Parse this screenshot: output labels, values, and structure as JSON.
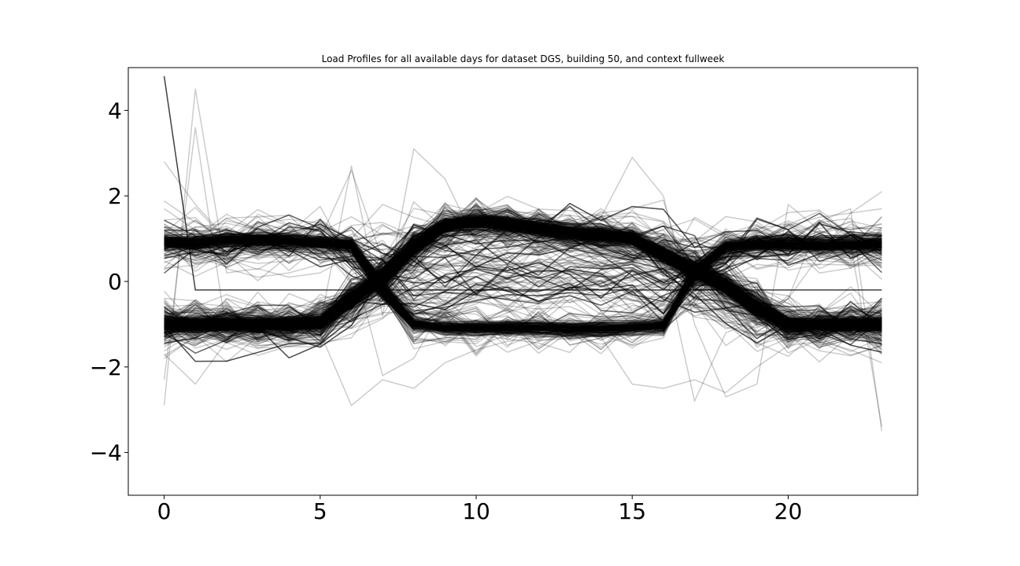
{
  "chart_data": {
    "type": "line",
    "title": "Load Profiles for all available days for dataset DGS, building 50, and context fullweek",
    "xlabel": "",
    "ylabel": "",
    "xlim": [
      -1.15,
      24.15
    ],
    "ylim": [
      -5,
      5
    ],
    "x_ticks": [
      0,
      5,
      10,
      15,
      20
    ],
    "x_tick_labels": [
      "0",
      "5",
      "10",
      "15",
      "20"
    ],
    "y_ticks": [
      4,
      2,
      0,
      -2,
      -4
    ],
    "y_tick_labels": [
      "4",
      "2",
      "0",
      "−2",
      "−4"
    ],
    "grid": false,
    "legend": "none",
    "line_color": "#000000",
    "x": [
      0,
      1,
      2,
      3,
      4,
      5,
      6,
      7,
      8,
      9,
      10,
      11,
      12,
      13,
      14,
      15,
      16,
      17,
      18,
      19,
      20,
      21,
      22,
      23
    ],
    "num_profiles_estimated": 700,
    "series": [
      {
        "values": [
          -1.0,
          -1.0,
          -1.0,
          -1.0,
          -1.0,
          -0.95,
          -0.4,
          0.1,
          0.8,
          1.3,
          1.4,
          1.35,
          1.25,
          1.15,
          1.1,
          1.0,
          0.6,
          0.3,
          -0.1,
          -0.6,
          -1.0,
          -1.0,
          -1.0,
          -1.0
        ]
      },
      {
        "values": [
          -1.05,
          -1.05,
          -1.05,
          -1.05,
          -1.05,
          -1.0,
          -0.5,
          0.0,
          0.7,
          1.25,
          1.35,
          1.3,
          1.2,
          1.1,
          1.05,
          0.95,
          0.55,
          0.2,
          -0.2,
          -0.7,
          -1.05,
          -1.05,
          -1.05,
          -1.05
        ]
      },
      {
        "values": [
          -0.95,
          -0.95,
          -0.95,
          -0.95,
          -0.95,
          -0.9,
          -0.3,
          0.2,
          0.9,
          1.35,
          1.45,
          1.4,
          1.3,
          1.2,
          1.15,
          1.05,
          0.7,
          0.35,
          0.0,
          -0.5,
          -0.95,
          -0.95,
          -0.95,
          -0.95
        ]
      },
      {
        "values": [
          0.9,
          0.9,
          0.95,
          0.95,
          0.95,
          0.9,
          0.85,
          -0.2,
          -1.0,
          -1.1,
          -1.1,
          -1.1,
          -1.1,
          -1.1,
          -1.1,
          -1.1,
          -1.05,
          0.2,
          0.8,
          0.85,
          0.85,
          0.85,
          0.85,
          0.85
        ]
      },
      {
        "values": [
          0.95,
          0.95,
          1.0,
          1.0,
          1.0,
          0.95,
          0.9,
          -0.1,
          -0.95,
          -1.15,
          -1.15,
          -1.15,
          -1.2,
          -1.2,
          -1.2,
          -1.15,
          -1.1,
          0.3,
          0.85,
          0.9,
          0.9,
          0.9,
          0.9,
          0.9
        ]
      },
      {
        "values": [
          0.85,
          0.85,
          0.9,
          0.9,
          0.9,
          0.85,
          0.8,
          -0.3,
          -1.05,
          -1.05,
          -1.05,
          -1.05,
          -1.05,
          -1.05,
          -1.05,
          -1.05,
          -1.0,
          0.1,
          0.75,
          0.8,
          0.8,
          0.8,
          0.8,
          0.8
        ]
      },
      {
        "values": [
          4.8,
          -0.2,
          -0.2,
          -0.2,
          -0.2,
          -0.2,
          -0.2,
          -0.2,
          -0.2,
          -0.2,
          -0.2,
          -0.2,
          -0.2,
          -0.2,
          -0.2,
          -0.2,
          -0.2,
          -0.2,
          -0.2,
          -0.2,
          -0.2,
          -0.2,
          -0.2,
          -0.2
        ],
        "emphasis": true
      },
      {
        "values": [
          2.8,
          1.8,
          1.0,
          1.0,
          1.0,
          1.0,
          2.6,
          0.5,
          0.2,
          0.4,
          0.8,
          1.0,
          1.2,
          1.4,
          1.6,
          1.7,
          1.9,
          -0.5,
          -1.5,
          -1.0,
          -0.4,
          0.6,
          1.6,
          2.1
        ]
      },
      {
        "values": [
          -2.9,
          4.5,
          0.2,
          0.3,
          0.1,
          0.2,
          0.6,
          -2.2,
          -1.8,
          -0.5,
          -0.3,
          0.1,
          0.4,
          0.8,
          1.0,
          0.8,
          0.5,
          -2.8,
          -1.2,
          -0.9,
          -0.4,
          1.4,
          1.7,
          -3.5
        ]
      },
      {
        "values": [
          -2.3,
          3.6,
          -1.2,
          -1.1,
          -1.1,
          -1.0,
          2.7,
          -0.8,
          3.1,
          2.4,
          0.9,
          0.5,
          0.7,
          1.2,
          1.5,
          2.9,
          2.0,
          -1.0,
          -2.7,
          -2.4,
          1.8,
          1.2,
          0.9,
          -3.4
        ]
      },
      {
        "values": [
          1.7,
          1.2,
          0.3,
          0.1,
          0.2,
          0.4,
          1.0,
          1.8,
          1.5,
          1.3,
          1.2,
          1.0,
          0.9,
          0.7,
          0.5,
          0.4,
          0.2,
          1.5,
          1.1,
          0.9,
          1.3,
          1.5,
          1.6,
          1.7
        ]
      },
      {
        "values": [
          -1.7,
          -2.4,
          -1.4,
          -1.3,
          -1.2,
          -1.2,
          -2.9,
          -2.3,
          -2.5,
          -1.9,
          -1.6,
          -1.4,
          -1.3,
          -1.2,
          -1.3,
          -2.4,
          -2.5,
          -2.3,
          -2.6,
          -2.0,
          -1.5,
          -1.4,
          -1.6,
          -1.9
        ]
      }
    ]
  }
}
